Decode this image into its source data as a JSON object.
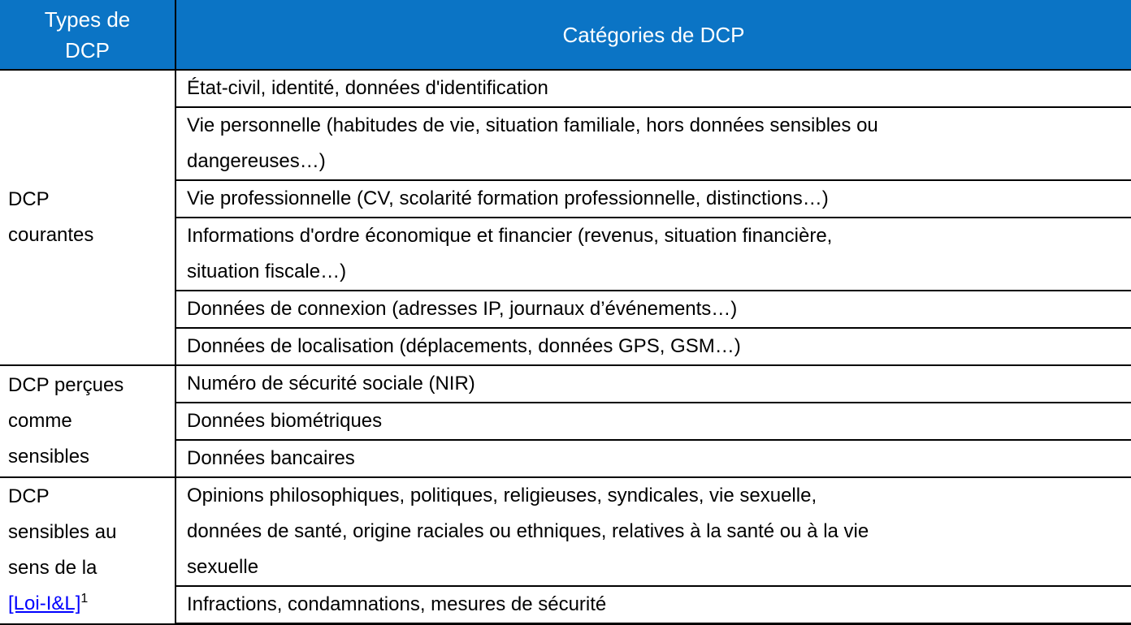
{
  "colors": {
    "header_bg": "#0b74c5",
    "header_text": "#ffffff",
    "border": "#000000",
    "link": "#0000ff"
  },
  "header": {
    "types": "Types de\nDCP",
    "categories": "Catégories de DCP"
  },
  "groups": [
    {
      "type_label": "DCP\ncourantes",
      "categories": [
        "État-civil, identité, données d'identification",
        "Vie personnelle (habitudes de vie, situation familiale, hors données sensibles ou\ndangereuses…)",
        "Vie professionnelle (CV, scolarité formation professionnelle, distinctions…)",
        "Informations d'ordre économique et financier (revenus, situation financière,\nsituation fiscale…)",
        "Données de connexion (adresses IP, journaux d’événements…)",
        "Données de localisation (déplacements, données GPS, GSM…)"
      ]
    },
    {
      "type_label": "DCP perçues\ncomme\nsensibles",
      "categories": [
        "Numéro de sécurité sociale (NIR)",
        "Données biométriques",
        "Données bancaires"
      ]
    },
    {
      "type_label_prefix": "DCP\nsensibles au\nsens de la",
      "type_link": "[Loi-I&L]",
      "type_link_footnote": "1",
      "categories": [
        "Opinions philosophiques, politiques, religieuses, syndicales, vie sexuelle,\ndonnées de santé, origine raciales ou ethniques, relatives à la santé ou à la vie\nsexuelle",
        "Infractions, condamnations, mesures de sécurité"
      ]
    }
  ]
}
